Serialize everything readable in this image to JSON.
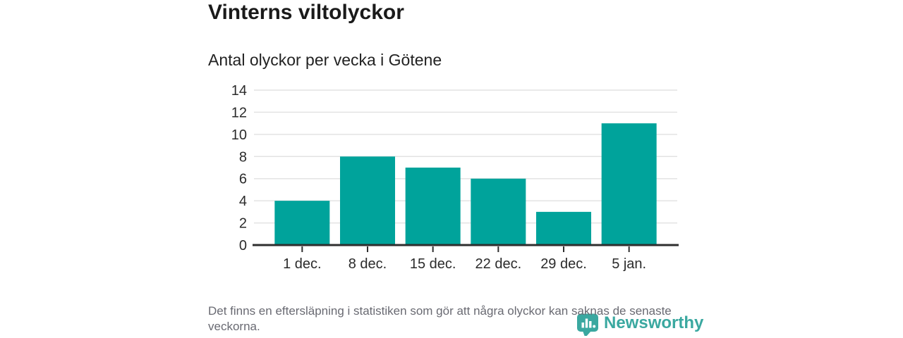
{
  "chart_data": {
    "type": "bar",
    "title": "Vinterns viltolyckor",
    "subtitle": "Antal olyckor per vecka i Götene",
    "categories": [
      "1 dec.",
      "8 dec.",
      "15 dec.",
      "22 dec.",
      "29 dec.",
      "5 jan."
    ],
    "values": [
      4,
      8,
      7,
      6,
      3,
      11
    ],
    "xlabel": "",
    "ylabel": "",
    "ylim": [
      0,
      14
    ],
    "yticks": [
      0,
      2,
      4,
      6,
      8,
      10,
      12,
      14
    ],
    "grid": true,
    "legend": false,
    "bar_color": "#00a39b",
    "gridline_color": "#e3e3e3",
    "axis_line_color": "#2e2e2e",
    "tick_label_color": "#2b2b2b"
  },
  "footer": {
    "note": "Det finns en eftersläpning i statistiken som gör att några olyckor kan saknas de senaste veckorna."
  },
  "logo": {
    "text": "Newsworthy",
    "color": "#3aa8a0",
    "icon": "newsworthy-bubble-bar-chart-icon"
  }
}
